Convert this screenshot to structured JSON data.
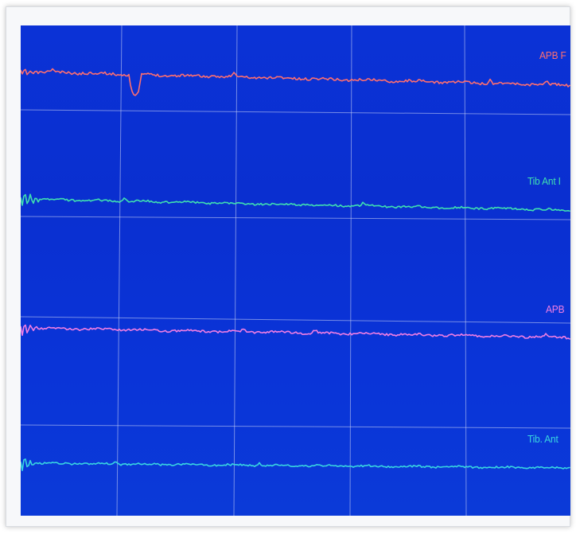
{
  "display": {
    "background_color": "#0b33d6",
    "grid_color": "#cdd6f5"
  },
  "channels": [
    {
      "label": "APB F",
      "color": "#ff6f6f"
    },
    {
      "label": "Tib Ant I",
      "color": "#3fe0b0"
    },
    {
      "label": "APB",
      "color": "#f17ee3"
    },
    {
      "label": "Tib. Ant",
      "color": "#38d6e0"
    }
  ]
}
